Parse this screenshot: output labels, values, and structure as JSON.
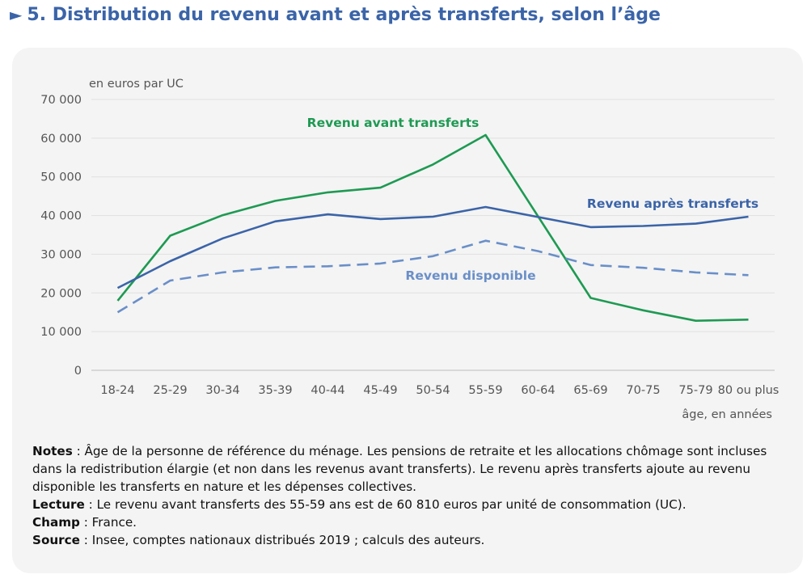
{
  "header": {
    "marker": "►",
    "title": "5. Distribution du revenu avant et après transferts, selon l’âge"
  },
  "colors": {
    "avant": "#1e9a53",
    "apres": "#3b64a8",
    "disponible": "#6a8fc8",
    "title": "#3b64a8"
  },
  "chart_data": {
    "type": "line",
    "title": "5. Distribution du revenu avant et après transferts, selon l’âge",
    "ylabel": "en euros par UC",
    "xlabel": "âge, en années",
    "ylim": [
      0,
      70000
    ],
    "yticks": [
      0,
      10000,
      20000,
      30000,
      40000,
      50000,
      60000,
      70000
    ],
    "ytick_labels": [
      "0",
      "10 000",
      "20 000",
      "30 000",
      "40 000",
      "50 000",
      "60 000",
      "70 000"
    ],
    "grid": true,
    "categories": [
      "18-24",
      "25-29",
      "30-34",
      "35-39",
      "40-44",
      "45-49",
      "50-54",
      "55-59",
      "60-64",
      "65-69",
      "70-75",
      "75-79",
      "80 ou plus"
    ],
    "series": [
      {
        "name": "Revenu avant transferts",
        "style": "solid",
        "values": [
          18000,
          34800,
          40100,
          43800,
          46000,
          47200,
          53200,
          60810,
          null,
          18700,
          15500,
          12800,
          13100
        ]
      },
      {
        "name": "Revenu après transferts",
        "style": "solid",
        "values": [
          21300,
          28200,
          34100,
          38500,
          40300,
          39100,
          39700,
          42200,
          null,
          37000,
          37300,
          37900,
          39700
        ]
      },
      {
        "name": "Revenu disponible",
        "style": "dashed",
        "values": [
          15000,
          23200,
          25300,
          26600,
          26900,
          27600,
          29500,
          33500,
          30800,
          27200,
          26500,
          25300,
          24600
        ]
      }
    ]
  },
  "notes": [
    {
      "label": "Notes",
      "text": " : Âge de la personne de référence du ménage. Les pensions de retraite et les allocations chômage sont incluses dans la redistribution élargie (et non dans les revenus avant transferts). Le revenu après transferts ajoute au revenu disponible les transferts en nature et les dépenses collectives."
    },
    {
      "label": "Lecture",
      "text": " : Le revenu avant transferts des 55-59 ans est de 60 810 euros par unité de consommation (UC)."
    },
    {
      "label": "Champ",
      "text": " : France."
    },
    {
      "label": "Source",
      "text": " : Insee, comptes nationaux distribués 2019 ; calculs des auteurs."
    }
  ]
}
